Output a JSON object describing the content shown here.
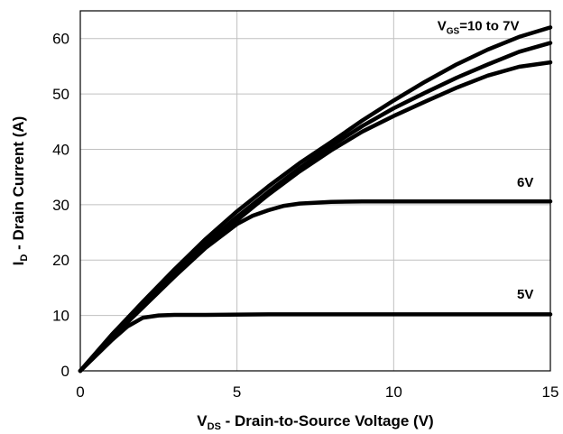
{
  "chart_data": {
    "type": "line",
    "xlabel": {
      "main": "V",
      "sub": "DS",
      "rest": " - Drain-to-Source Voltage (V)"
    },
    "ylabel": {
      "main": "I",
      "sub": "D",
      "rest": " - Drain Current (A)"
    },
    "xlim": [
      0,
      15
    ],
    "ylim": [
      0,
      65
    ],
    "xticks": [
      0,
      5,
      10,
      15
    ],
    "yticks": [
      0,
      10,
      20,
      30,
      40,
      50,
      60
    ],
    "grid": true,
    "annotations": [
      {
        "main": "V",
        "sub": "GS",
        "rest": "=10 to 7V",
        "x": 12.7,
        "y": 61.5
      },
      {
        "main": "",
        "sub": "",
        "rest": "6V",
        "x": 14.2,
        "y": 33.2
      },
      {
        "main": "",
        "sub": "",
        "rest": "5V",
        "x": 14.2,
        "y": 13.0
      }
    ],
    "series": [
      {
        "x": [
          0,
          1,
          2,
          3,
          4,
          5,
          6,
          7,
          8,
          9,
          10,
          11,
          12,
          13,
          14,
          15
        ],
        "y": [
          0,
          6.5,
          12.5,
          18.3,
          23.8,
          28.8,
          33.3,
          37.5,
          41.3,
          45.2,
          48.8,
          52.2,
          55.3,
          58.0,
          60.3,
          62.0
        ]
      },
      {
        "x": [
          0,
          1,
          2,
          3,
          4,
          5,
          6,
          7,
          8,
          9,
          10,
          11,
          12,
          13,
          14,
          15
        ],
        "y": [
          0,
          6.3,
          12.0,
          17.6,
          23.0,
          27.8,
          32.3,
          36.6,
          40.6,
          44.2,
          47.4,
          50.2,
          52.9,
          55.3,
          57.6,
          59.2
        ]
      },
      {
        "x": [
          0,
          1,
          2,
          3,
          4,
          5,
          6,
          7,
          8,
          9,
          10,
          11,
          12,
          13,
          14,
          15
        ],
        "y": [
          0,
          6.0,
          11.5,
          17.0,
          22.3,
          27.2,
          31.8,
          36.0,
          39.8,
          43.2,
          46.0,
          48.6,
          51.1,
          53.3,
          54.9,
          55.7
        ]
      },
      {
        "x": [
          0,
          1,
          2,
          3,
          4,
          5,
          5.5,
          6,
          6.5,
          7,
          8,
          9,
          10,
          12,
          15
        ],
        "y": [
          0,
          6.0,
          11.5,
          17.0,
          22.2,
          26.5,
          28.0,
          29.0,
          29.8,
          30.2,
          30.5,
          30.6,
          30.6,
          30.6,
          30.6
        ]
      },
      {
        "x": [
          0,
          1,
          1.5,
          2.0,
          2.5,
          3,
          4,
          6,
          10,
          15
        ],
        "y": [
          0,
          5.5,
          8.0,
          9.6,
          10.0,
          10.1,
          10.1,
          10.2,
          10.2,
          10.2
        ]
      }
    ]
  }
}
